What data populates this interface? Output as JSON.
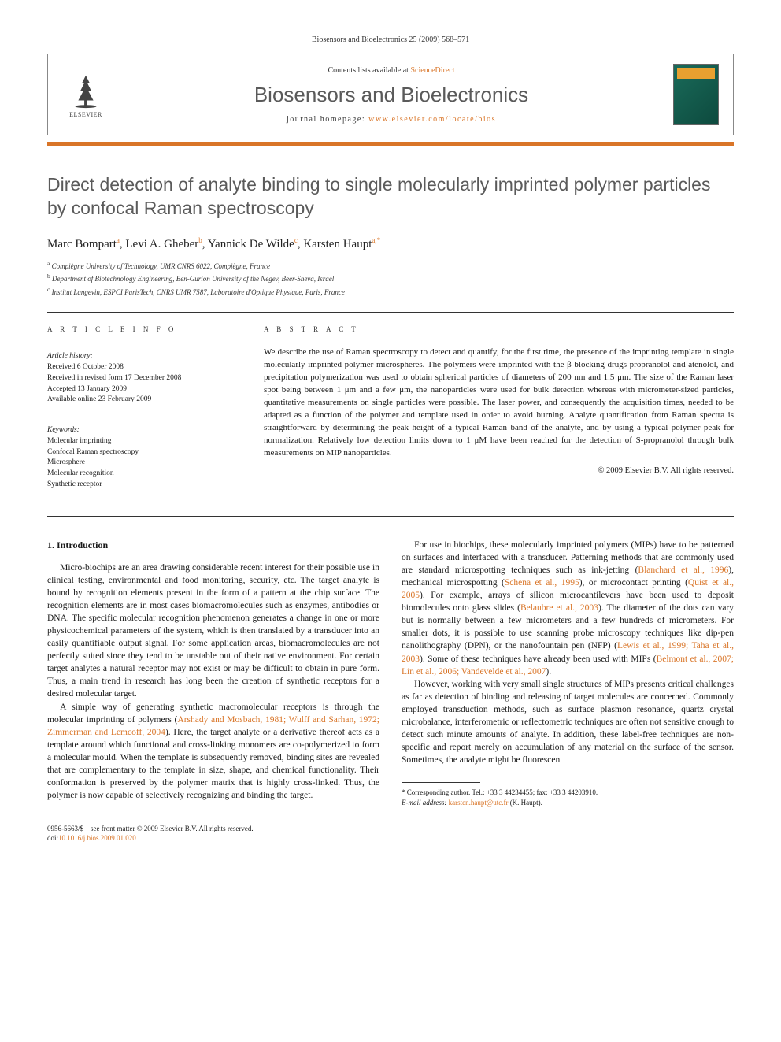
{
  "citation": "Biosensors and Bioelectronics 25 (2009) 568–571",
  "header": {
    "contents_prefix": "Contents lists available at ",
    "contents_link": "ScienceDirect",
    "journal": "Biosensors and Bioelectronics",
    "homepage_prefix": "journal homepage: ",
    "homepage_url": "www.elsevier.com/locate/bios",
    "publisher": "ELSEVIER"
  },
  "title": "Direct detection of analyte binding to single molecularly imprinted polymer particles by confocal Raman spectroscopy",
  "authors_html": "Marc Bompart<sup>a</sup>, Levi A. Gheber<sup>b</sup>, Yannick De Wilde<sup>c</sup>, Karsten Haupt<sup>a,*</sup>",
  "affiliations": [
    "a Compiègne University of Technology, UMR CNRS 6022, Compiègne, France",
    "b Department of Biotechnology Engineering, Ben-Gurion University of the Negev, Beer-Sheva, Israel",
    "c Institut Langevin, ESPCI ParisTech, CNRS UMR 7587, Laboratoire d'Optique Physique, Paris, France"
  ],
  "info": {
    "section_label": "A R T I C L E   I N F O",
    "history_label": "Article history:",
    "history": [
      "Received 6 October 2008",
      "Received in revised form 17 December 2008",
      "Accepted 13 January 2009",
      "Available online 23 February 2009"
    ],
    "keywords_label": "Keywords:",
    "keywords": [
      "Molecular imprinting",
      "Confocal Raman spectroscopy",
      "Microsphere",
      "Molecular recognition",
      "Synthetic receptor"
    ]
  },
  "abstract": {
    "label": "A B S T R A C T",
    "text": "We describe the use of Raman spectroscopy to detect and quantify, for the first time, the presence of the imprinting template in single molecularly imprinted polymer microspheres. The polymers were imprinted with the β-blocking drugs propranolol and atenolol, and precipitation polymerization was used to obtain spherical particles of diameters of 200 nm and 1.5 μm. The size of the Raman laser spot being between 1 μm and a few μm, the nanoparticles were used for bulk detection whereas with micrometer-sized particles, quantitative measurements on single particles were possible. The laser power, and consequently the acquisition times, needed to be adapted as a function of the polymer and template used in order to avoid burning. Analyte quantification from Raman spectra is straightforward by determining the peak height of a typical Raman band of the analyte, and by using a typical polymer peak for normalization. Relatively low detection limits down to 1 μM have been reached for the detection of S-propranolol through bulk measurements on MIP nanoparticles.",
    "copyright": "© 2009 Elsevier B.V. All rights reserved."
  },
  "intro": {
    "heading": "1.  Introduction",
    "p1": "Micro-biochips are an area drawing considerable recent interest for their possible use in clinical testing, environmental and food monitoring, security, etc. The target analyte is bound by recognition elements present in the form of a pattern at the chip surface. The recognition elements are in most cases biomacromolecules such as enzymes, antibodies or DNA. The specific molecular recognition phenomenon generates a change in one or more physicochemical parameters of the system, which is then translated by a transducer into an easily quantifiable output signal. For some application areas, biomacromolecules are not perfectly suited since they tend to be unstable out of their native environment. For certain target analytes a natural receptor may not exist or may be difficult to obtain in pure form. Thus, a main trend in research has long been the creation of synthetic receptors for a desired molecular target.",
    "p2a": "A simple way of generating synthetic macromolecular receptors is through the molecular imprinting of polymers (",
    "p2cite": "Arshady and Mosbach, 1981; Wulff and Sarhan, 1972; Zimmerman and Lemcoff, 2004",
    "p2b": "). Here, the target analyte or a derivative thereof acts as a template around which functional and cross-linking monomers are co-polymerized to form a molecular mould. When the template is subsequently removed, binding sites are revealed that are complementary to the template in size, shape, and chemical functionality. Their conformation is preserved by the polymer matrix that is highly cross-linked. Thus, the polymer is now capable of selectively recognizing and binding the target.",
    "p3a": "For use in biochips, these molecularly imprinted polymers (MIPs) have to be patterned on surfaces and interfaced with a transducer. Patterning methods that are commonly used are standard microspotting techniques such as ink-jetting (",
    "p3c1": "Blanchard et al., 1996",
    "p3b": "), mechanical microspotting (",
    "p3c2": "Schena et al., 1995",
    "p3c": "), or microcontact printing (",
    "p3c3": "Quist et al., 2005",
    "p3d": "). For example, arrays of silicon microcantilevers have been used to deposit biomolecules onto glass slides (",
    "p3c4": "Belaubre et al., 2003",
    "p3e": "). The diameter of the dots can vary but is normally between a few micrometers and a few hundreds of micrometers. For smaller dots, it is possible to use scanning probe microscopy techniques like dip-pen nanolithography (DPN), or the nanofountain pen (NFP) (",
    "p3c5": "Lewis et al., 1999; Taha et al., 2003",
    "p3f": "). Some of these techniques have already been used with MIPs (",
    "p3c6": "Belmont et al., 2007; Lin et al., 2006; Vandevelde et al., 2007",
    "p3g": ").",
    "p4": "However, working with very small single structures of MIPs presents critical challenges as far as detection of binding and releasing of target molecules are concerned. Commonly employed transduction methods, such as surface plasmon resonance, quartz crystal microbalance, interferometric or reflectometric techniques are often not sensitive enough to detect such minute amounts of analyte. In addition, these label-free techniques are non-specific and report merely on accumulation of any material on the surface of the sensor. Sometimes, the analyte might be fluorescent"
  },
  "corresponding": {
    "line1": "* Corresponding author. Tel.: +33 3 44234455; fax: +33 3 44203910.",
    "line2_label": "E-mail address: ",
    "line2_email": "karsten.haupt@utc.fr",
    "line2_suffix": " (K. Haupt)."
  },
  "footer": {
    "line1": "0956-5663/$ – see front matter © 2009 Elsevier B.V. All rights reserved.",
    "doi_prefix": "doi:",
    "doi": "10.1016/j.bios.2009.01.020"
  }
}
